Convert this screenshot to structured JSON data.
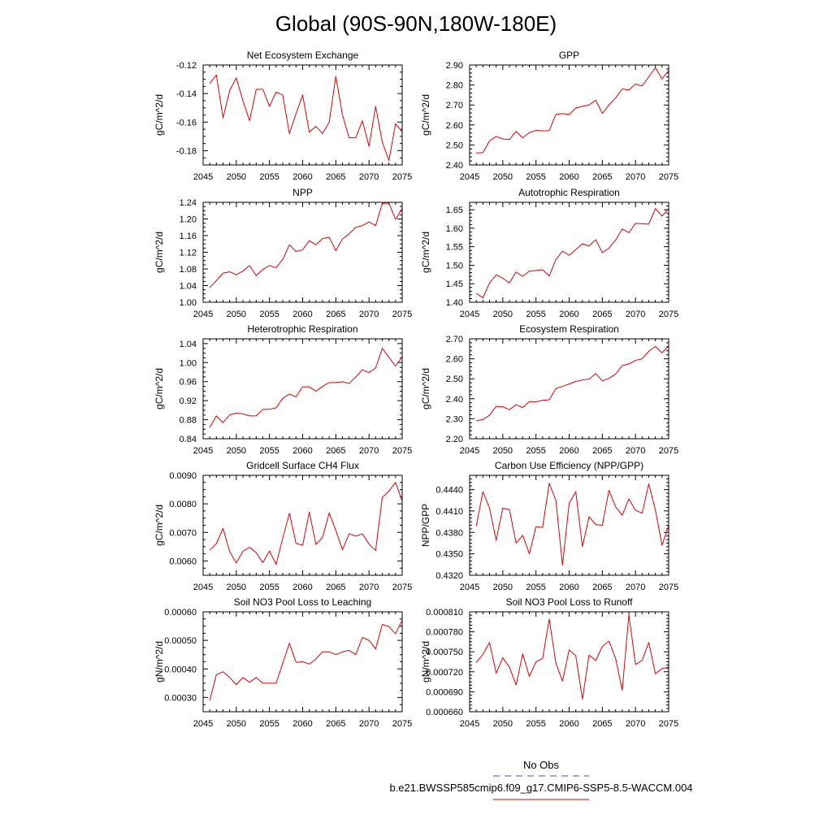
{
  "title": "Global (90S-90N,180W-180E)",
  "colors": {
    "model": "#e00000",
    "obs": "#4444cc",
    "axis": "#000000"
  },
  "legend": {
    "obs_label": "No Obs",
    "model_label": "b.e21.BWSSP585cmip6.f09_g17.CMIP6-SSP5-8.5-WACCM.004"
  },
  "chart_data": [
    {
      "type": "line",
      "title": "Net Ecosystem Exchange",
      "ylabel": "gC/m^2/d",
      "xlim": [
        2045,
        2075
      ],
      "ylim": [
        -0.19,
        -0.12
      ],
      "xticks": [
        2045,
        2050,
        2055,
        2060,
        2065,
        2070,
        2075
      ],
      "xticklabels": [
        "2045",
        "2050",
        "2055",
        "2060",
        "2065",
        "2070",
        "2075"
      ],
      "yticks": [
        -0.18,
        -0.16,
        -0.14,
        -0.12
      ],
      "yticklabels": [
        "-0.18",
        "-0.16",
        "-0.14",
        "-0.12"
      ],
      "yminor": 0.005,
      "x": [
        2046,
        2047,
        2048,
        2049,
        2050,
        2051,
        2052,
        2053,
        2054,
        2055,
        2056,
        2057,
        2058,
        2059,
        2060,
        2061,
        2062,
        2063,
        2064,
        2065,
        2066,
        2067,
        2068,
        2069,
        2070,
        2071,
        2072,
        2073,
        2074,
        2075
      ],
      "y": [
        -0.133,
        -0.127,
        -0.157,
        -0.138,
        -0.129,
        -0.145,
        -0.159,
        -0.137,
        -0.137,
        -0.149,
        -0.139,
        -0.141,
        -0.168,
        -0.154,
        -0.141,
        -0.167,
        -0.163,
        -0.168,
        -0.16,
        -0.128,
        -0.155,
        -0.171,
        -0.171,
        -0.159,
        -0.177,
        -0.149,
        -0.174,
        -0.187,
        -0.161,
        -0.167
      ]
    },
    {
      "type": "line",
      "title": "GPP",
      "ylabel": "gC/m^2/d",
      "xlim": [
        2045,
        2075
      ],
      "ylim": [
        2.4,
        2.9
      ],
      "xticks": [
        2045,
        2050,
        2055,
        2060,
        2065,
        2070,
        2075
      ],
      "xticklabels": [
        "2045",
        "2050",
        "2055",
        "2060",
        "2065",
        "2070",
        "2075"
      ],
      "yticks": [
        2.4,
        2.5,
        2.6,
        2.7,
        2.8,
        2.9
      ],
      "yticklabels": [
        "2.40",
        "2.50",
        "2.60",
        "2.70",
        "2.80",
        "2.90"
      ],
      "yminor": 0.02,
      "x": [
        2046,
        2047,
        2048,
        2049,
        2050,
        2051,
        2052,
        2053,
        2054,
        2055,
        2056,
        2057,
        2058,
        2059,
        2060,
        2061,
        2062,
        2063,
        2064,
        2065,
        2066,
        2067,
        2068,
        2069,
        2070,
        2071,
        2072,
        2073,
        2074,
        2075
      ],
      "y": [
        2.46,
        2.462,
        2.52,
        2.543,
        2.53,
        2.527,
        2.568,
        2.535,
        2.562,
        2.573,
        2.57,
        2.572,
        2.653,
        2.657,
        2.652,
        2.685,
        2.693,
        2.7,
        2.724,
        2.658,
        2.7,
        2.735,
        2.78,
        2.775,
        2.805,
        2.795,
        2.84,
        2.887,
        2.83,
        2.873
      ]
    },
    {
      "type": "line",
      "title": "NPP",
      "ylabel": "gC/m^2/d",
      "xlim": [
        2045,
        2075
      ],
      "ylim": [
        1.0,
        1.24
      ],
      "xticks": [
        2045,
        2050,
        2055,
        2060,
        2065,
        2070,
        2075
      ],
      "xticklabels": [
        "2045",
        "2050",
        "2055",
        "2060",
        "2065",
        "2070",
        "2075"
      ],
      "yticks": [
        1.0,
        1.04,
        1.08,
        1.12,
        1.16,
        1.2,
        1.24
      ],
      "yticklabels": [
        "1.00",
        "1.04",
        "1.08",
        "1.12",
        "1.16",
        "1.20",
        "1.24"
      ],
      "yminor": 0.01,
      "x": [
        2046,
        2047,
        2048,
        2049,
        2050,
        2051,
        2052,
        2053,
        2054,
        2055,
        2056,
        2057,
        2058,
        2059,
        2060,
        2061,
        2062,
        2063,
        2064,
        2065,
        2066,
        2067,
        2068,
        2069,
        2070,
        2071,
        2072,
        2073,
        2074,
        2075
      ],
      "y": [
        1.035,
        1.052,
        1.07,
        1.073,
        1.066,
        1.075,
        1.088,
        1.064,
        1.079,
        1.088,
        1.083,
        1.103,
        1.138,
        1.122,
        1.126,
        1.148,
        1.138,
        1.153,
        1.156,
        1.124,
        1.152,
        1.164,
        1.18,
        1.184,
        1.193,
        1.184,
        1.237,
        1.238,
        1.199,
        1.225
      ]
    },
    {
      "type": "line",
      "title": "Autotrophic Respiration",
      "ylabel": "gC/m^2/d",
      "xlim": [
        2045,
        2075
      ],
      "ylim": [
        1.4,
        1.67
      ],
      "xticks": [
        2045,
        2050,
        2055,
        2060,
        2065,
        2070,
        2075
      ],
      "xticklabels": [
        "2045",
        "2050",
        "2055",
        "2060",
        "2065",
        "2070",
        "2075"
      ],
      "yticks": [
        1.4,
        1.45,
        1.5,
        1.55,
        1.6,
        1.65
      ],
      "yticklabels": [
        "1.40",
        "1.45",
        "1.50",
        "1.55",
        "1.60",
        "1.65"
      ],
      "yminor": 0.01,
      "x": [
        2046,
        2047,
        2048,
        2049,
        2050,
        2051,
        2052,
        2053,
        2054,
        2055,
        2056,
        2057,
        2058,
        2059,
        2060,
        2061,
        2062,
        2063,
        2064,
        2065,
        2066,
        2067,
        2068,
        2069,
        2070,
        2071,
        2072,
        2073,
        2074,
        2075
      ],
      "y": [
        1.424,
        1.412,
        1.452,
        1.474,
        1.465,
        1.452,
        1.482,
        1.47,
        1.484,
        1.486,
        1.488,
        1.471,
        1.516,
        1.538,
        1.527,
        1.542,
        1.558,
        1.552,
        1.569,
        1.534,
        1.546,
        1.568,
        1.598,
        1.588,
        1.613,
        1.612,
        1.611,
        1.653,
        1.633,
        1.653
      ]
    },
    {
      "type": "line",
      "title": "Heterotrophic Respiration",
      "ylabel": "gC/m^2/d",
      "xlim": [
        2045,
        2075
      ],
      "ylim": [
        0.84,
        1.05
      ],
      "xticks": [
        2045,
        2050,
        2055,
        2060,
        2065,
        2070,
        2075
      ],
      "xticklabels": [
        "2045",
        "2050",
        "2055",
        "2060",
        "2065",
        "2070",
        "2075"
      ],
      "yticks": [
        0.84,
        0.88,
        0.92,
        0.96,
        1.0,
        1.04
      ],
      "yticklabels": [
        "0.84",
        "0.88",
        "0.92",
        "0.96",
        "1.00",
        "1.04"
      ],
      "yminor": 0.01,
      "x": [
        2046,
        2047,
        2048,
        2049,
        2050,
        2051,
        2052,
        2053,
        2054,
        2055,
        2056,
        2057,
        2058,
        2059,
        2060,
        2061,
        2062,
        2063,
        2064,
        2065,
        2066,
        2067,
        2068,
        2069,
        2070,
        2071,
        2072,
        2073,
        2074,
        2075
      ],
      "y": [
        0.864,
        0.888,
        0.874,
        0.89,
        0.894,
        0.892,
        0.888,
        0.888,
        0.902,
        0.902,
        0.905,
        0.925,
        0.934,
        0.928,
        0.949,
        0.949,
        0.94,
        0.95,
        0.958,
        0.958,
        0.96,
        0.956,
        0.97,
        0.985,
        0.979,
        0.989,
        1.03,
        1.011,
        0.993,
        1.012
      ]
    },
    {
      "type": "line",
      "title": "Ecosystem Respiration",
      "ylabel": "gC/m^2/d",
      "xlim": [
        2045,
        2075
      ],
      "ylim": [
        2.2,
        2.7
      ],
      "xticks": [
        2045,
        2050,
        2055,
        2060,
        2065,
        2070,
        2075
      ],
      "xticklabels": [
        "2045",
        "2050",
        "2055",
        "2060",
        "2065",
        "2070",
        "2075"
      ],
      "yticks": [
        2.2,
        2.3,
        2.4,
        2.5,
        2.6,
        2.7
      ],
      "yticklabels": [
        "2.20",
        "2.30",
        "2.40",
        "2.50",
        "2.60",
        "2.70"
      ],
      "yminor": 0.02,
      "x": [
        2046,
        2047,
        2048,
        2049,
        2050,
        2051,
        2052,
        2053,
        2054,
        2055,
        2056,
        2057,
        2058,
        2059,
        2060,
        2061,
        2062,
        2063,
        2064,
        2065,
        2066,
        2067,
        2068,
        2069,
        2070,
        2071,
        2072,
        2073,
        2074,
        2075
      ],
      "y": [
        2.29,
        2.296,
        2.318,
        2.362,
        2.36,
        2.345,
        2.37,
        2.356,
        2.386,
        2.385,
        2.392,
        2.395,
        2.451,
        2.462,
        2.474,
        2.487,
        2.494,
        2.498,
        2.526,
        2.49,
        2.502,
        2.524,
        2.567,
        2.574,
        2.592,
        2.6,
        2.638,
        2.662,
        2.63,
        2.665
      ]
    },
    {
      "type": "line",
      "title": "Gridcell Surface CH4 Flux",
      "ylabel": "gC/m^2/d",
      "xlim": [
        2045,
        2075
      ],
      "ylim": [
        0.0055,
        0.009
      ],
      "xticks": [
        2045,
        2050,
        2055,
        2060,
        2065,
        2070,
        2075
      ],
      "xticklabels": [
        "2045",
        "2050",
        "2055",
        "2060",
        "2065",
        "2070",
        "2075"
      ],
      "yticks": [
        0.006,
        0.007,
        0.008,
        0.009
      ],
      "yticklabels": [
        "0.0060",
        "0.0070",
        "0.0080",
        "0.0090"
      ],
      "yminor": 0.00025,
      "x": [
        2046,
        2047,
        2048,
        2049,
        2050,
        2051,
        2052,
        2053,
        2054,
        2055,
        2056,
        2057,
        2058,
        2059,
        2060,
        2061,
        2062,
        2063,
        2064,
        2065,
        2066,
        2067,
        2068,
        2069,
        2070,
        2071,
        2072,
        2073,
        2074,
        2075
      ],
      "y": [
        0.00638,
        0.00661,
        0.00714,
        0.00633,
        0.00593,
        0.00634,
        0.00648,
        0.00629,
        0.00594,
        0.00635,
        0.00588,
        0.0068,
        0.00767,
        0.00662,
        0.00655,
        0.00771,
        0.00658,
        0.00683,
        0.00768,
        0.00707,
        0.00639,
        0.00695,
        0.00687,
        0.00695,
        0.00659,
        0.00637,
        0.00823,
        0.00845,
        0.00875,
        0.0081
      ]
    },
    {
      "type": "line",
      "title": "Carbon Use Efficiency (NPP/GPP)",
      "ylabel": "NPP/GPP",
      "xlim": [
        2045,
        2075
      ],
      "ylim": [
        0.432,
        0.446
      ],
      "xticks": [
        2045,
        2050,
        2055,
        2060,
        2065,
        2070,
        2075
      ],
      "xticklabels": [
        "2045",
        "2050",
        "2055",
        "2060",
        "2065",
        "2070",
        "2075"
      ],
      "yticks": [
        0.432,
        0.435,
        0.438,
        0.441,
        0.444
      ],
      "yticklabels": [
        "0.4320",
        "0.4350",
        "0.4380",
        "0.4410",
        "0.4440"
      ],
      "yminor": 0.0005,
      "x": [
        2046,
        2047,
        2048,
        2049,
        2050,
        2051,
        2052,
        2053,
        2054,
        2055,
        2056,
        2057,
        2058,
        2059,
        2060,
        2061,
        2062,
        2063,
        2064,
        2065,
        2066,
        2067,
        2068,
        2069,
        2070,
        2071,
        2072,
        2073,
        2074,
        2075
      ],
      "y": [
        0.4389,
        0.4437,
        0.4414,
        0.4369,
        0.4414,
        0.4412,
        0.4365,
        0.4376,
        0.435,
        0.4388,
        0.4387,
        0.4449,
        0.4425,
        0.4334,
        0.4421,
        0.4437,
        0.436,
        0.4402,
        0.4391,
        0.439,
        0.4439,
        0.4416,
        0.4404,
        0.4427,
        0.4411,
        0.4407,
        0.4448,
        0.4411,
        0.4362,
        0.439
      ]
    },
    {
      "type": "line",
      "title": "Soil NO3 Pool Loss to Leaching",
      "ylabel": "gN/m^2/d",
      "xlim": [
        2045,
        2075
      ],
      "ylim": [
        0.00025,
        0.0006
      ],
      "xticks": [
        2045,
        2050,
        2055,
        2060,
        2065,
        2070,
        2075
      ],
      "xticklabels": [
        "2045",
        "2050",
        "2055",
        "2060",
        "2065",
        "2070",
        "2075"
      ],
      "yticks": [
        0.0003,
        0.0004,
        0.0005,
        0.0006
      ],
      "yticklabels": [
        "0.00030",
        "0.00040",
        "0.00050",
        "0.00060"
      ],
      "yminor": 2.5e-05,
      "x": [
        2046,
        2047,
        2048,
        2049,
        2050,
        2051,
        2052,
        2053,
        2054,
        2055,
        2056,
        2057,
        2058,
        2059,
        2060,
        2061,
        2062,
        2063,
        2064,
        2065,
        2066,
        2067,
        2068,
        2069,
        2070,
        2071,
        2072,
        2073,
        2074,
        2075
      ],
      "y": [
        0.00029,
        0.00038,
        0.00039,
        0.00037,
        0.000345,
        0.00037,
        0.000353,
        0.00037,
        0.00035,
        0.00035,
        0.00035,
        0.00042,
        0.00049,
        0.000423,
        0.000425,
        0.000417,
        0.000435,
        0.00046,
        0.00046,
        0.00045,
        0.00046,
        0.000465,
        0.00045,
        0.00051,
        0.0005,
        0.00047,
        0.000556,
        0.000548,
        0.000523,
        0.000571
      ]
    },
    {
      "type": "line",
      "title": "Soil NO3 Pool Loss to Runoff",
      "ylabel": "gN/m^2/d",
      "xlim": [
        2045,
        2075
      ],
      "ylim": [
        0.00066,
        0.00081
      ],
      "xticks": [
        2045,
        2050,
        2055,
        2060,
        2065,
        2070,
        2075
      ],
      "xticklabels": [
        "2045",
        "2050",
        "2055",
        "2060",
        "2065",
        "2070",
        "2075"
      ],
      "yticks": [
        0.00066,
        0.00069,
        0.00072,
        0.00075,
        0.00078,
        0.00081
      ],
      "yticklabels": [
        "0.000660",
        "0.000690",
        "0.000720",
        "0.000750",
        "0.000780",
        "0.000810"
      ],
      "yminor": 5e-06,
      "x": [
        2046,
        2047,
        2048,
        2049,
        2050,
        2051,
        2052,
        2053,
        2054,
        2055,
        2056,
        2057,
        2058,
        2059,
        2060,
        2061,
        2062,
        2063,
        2064,
        2065,
        2066,
        2067,
        2068,
        2069,
        2070,
        2071,
        2072,
        2073,
        2074,
        2075
      ],
      "y": [
        0.000734,
        0.000746,
        0.000764,
        0.000718,
        0.000741,
        0.000727,
        0.0007,
        0.000747,
        0.000713,
        0.000735,
        0.00074,
        0.000799,
        0.000733,
        0.000706,
        0.000753,
        0.000744,
        0.000679,
        0.000745,
        0.000737,
        0.000758,
        0.000766,
        0.00074,
        0.000692,
        0.000806,
        0.000731,
        0.000737,
        0.000764,
        0.000717,
        0.000725,
        0.000727
      ]
    }
  ]
}
